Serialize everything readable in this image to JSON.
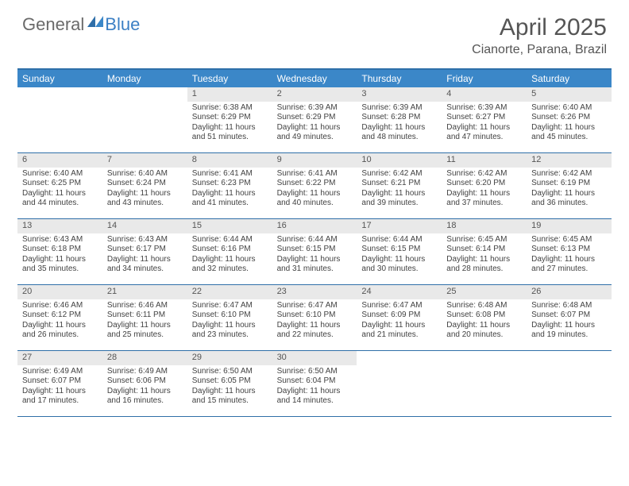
{
  "logo": {
    "general": "General",
    "blue": "Blue"
  },
  "header": {
    "month_title": "April 2025",
    "location": "Cianorte, Parana, Brazil"
  },
  "colors": {
    "header_bar": "#3b87c8",
    "border": "#2f6fa8",
    "daynum_bg": "#e9e9e9",
    "text": "#424242"
  },
  "dow": [
    "Sunday",
    "Monday",
    "Tuesday",
    "Wednesday",
    "Thursday",
    "Friday",
    "Saturday"
  ],
  "weeks": [
    [
      {
        "n": "",
        "sr": "",
        "ss": "",
        "dl": ""
      },
      {
        "n": "",
        "sr": "",
        "ss": "",
        "dl": ""
      },
      {
        "n": "1",
        "sr": "Sunrise: 6:38 AM",
        "ss": "Sunset: 6:29 PM",
        "dl": "Daylight: 11 hours and 51 minutes."
      },
      {
        "n": "2",
        "sr": "Sunrise: 6:39 AM",
        "ss": "Sunset: 6:29 PM",
        "dl": "Daylight: 11 hours and 49 minutes."
      },
      {
        "n": "3",
        "sr": "Sunrise: 6:39 AM",
        "ss": "Sunset: 6:28 PM",
        "dl": "Daylight: 11 hours and 48 minutes."
      },
      {
        "n": "4",
        "sr": "Sunrise: 6:39 AM",
        "ss": "Sunset: 6:27 PM",
        "dl": "Daylight: 11 hours and 47 minutes."
      },
      {
        "n": "5",
        "sr": "Sunrise: 6:40 AM",
        "ss": "Sunset: 6:26 PM",
        "dl": "Daylight: 11 hours and 45 minutes."
      }
    ],
    [
      {
        "n": "6",
        "sr": "Sunrise: 6:40 AM",
        "ss": "Sunset: 6:25 PM",
        "dl": "Daylight: 11 hours and 44 minutes."
      },
      {
        "n": "7",
        "sr": "Sunrise: 6:40 AM",
        "ss": "Sunset: 6:24 PM",
        "dl": "Daylight: 11 hours and 43 minutes."
      },
      {
        "n": "8",
        "sr": "Sunrise: 6:41 AM",
        "ss": "Sunset: 6:23 PM",
        "dl": "Daylight: 11 hours and 41 minutes."
      },
      {
        "n": "9",
        "sr": "Sunrise: 6:41 AM",
        "ss": "Sunset: 6:22 PM",
        "dl": "Daylight: 11 hours and 40 minutes."
      },
      {
        "n": "10",
        "sr": "Sunrise: 6:42 AM",
        "ss": "Sunset: 6:21 PM",
        "dl": "Daylight: 11 hours and 39 minutes."
      },
      {
        "n": "11",
        "sr": "Sunrise: 6:42 AM",
        "ss": "Sunset: 6:20 PM",
        "dl": "Daylight: 11 hours and 37 minutes."
      },
      {
        "n": "12",
        "sr": "Sunrise: 6:42 AM",
        "ss": "Sunset: 6:19 PM",
        "dl": "Daylight: 11 hours and 36 minutes."
      }
    ],
    [
      {
        "n": "13",
        "sr": "Sunrise: 6:43 AM",
        "ss": "Sunset: 6:18 PM",
        "dl": "Daylight: 11 hours and 35 minutes."
      },
      {
        "n": "14",
        "sr": "Sunrise: 6:43 AM",
        "ss": "Sunset: 6:17 PM",
        "dl": "Daylight: 11 hours and 34 minutes."
      },
      {
        "n": "15",
        "sr": "Sunrise: 6:44 AM",
        "ss": "Sunset: 6:16 PM",
        "dl": "Daylight: 11 hours and 32 minutes."
      },
      {
        "n": "16",
        "sr": "Sunrise: 6:44 AM",
        "ss": "Sunset: 6:15 PM",
        "dl": "Daylight: 11 hours and 31 minutes."
      },
      {
        "n": "17",
        "sr": "Sunrise: 6:44 AM",
        "ss": "Sunset: 6:15 PM",
        "dl": "Daylight: 11 hours and 30 minutes."
      },
      {
        "n": "18",
        "sr": "Sunrise: 6:45 AM",
        "ss": "Sunset: 6:14 PM",
        "dl": "Daylight: 11 hours and 28 minutes."
      },
      {
        "n": "19",
        "sr": "Sunrise: 6:45 AM",
        "ss": "Sunset: 6:13 PM",
        "dl": "Daylight: 11 hours and 27 minutes."
      }
    ],
    [
      {
        "n": "20",
        "sr": "Sunrise: 6:46 AM",
        "ss": "Sunset: 6:12 PM",
        "dl": "Daylight: 11 hours and 26 minutes."
      },
      {
        "n": "21",
        "sr": "Sunrise: 6:46 AM",
        "ss": "Sunset: 6:11 PM",
        "dl": "Daylight: 11 hours and 25 minutes."
      },
      {
        "n": "22",
        "sr": "Sunrise: 6:47 AM",
        "ss": "Sunset: 6:10 PM",
        "dl": "Daylight: 11 hours and 23 minutes."
      },
      {
        "n": "23",
        "sr": "Sunrise: 6:47 AM",
        "ss": "Sunset: 6:10 PM",
        "dl": "Daylight: 11 hours and 22 minutes."
      },
      {
        "n": "24",
        "sr": "Sunrise: 6:47 AM",
        "ss": "Sunset: 6:09 PM",
        "dl": "Daylight: 11 hours and 21 minutes."
      },
      {
        "n": "25",
        "sr": "Sunrise: 6:48 AM",
        "ss": "Sunset: 6:08 PM",
        "dl": "Daylight: 11 hours and 20 minutes."
      },
      {
        "n": "26",
        "sr": "Sunrise: 6:48 AM",
        "ss": "Sunset: 6:07 PM",
        "dl": "Daylight: 11 hours and 19 minutes."
      }
    ],
    [
      {
        "n": "27",
        "sr": "Sunrise: 6:49 AM",
        "ss": "Sunset: 6:07 PM",
        "dl": "Daylight: 11 hours and 17 minutes."
      },
      {
        "n": "28",
        "sr": "Sunrise: 6:49 AM",
        "ss": "Sunset: 6:06 PM",
        "dl": "Daylight: 11 hours and 16 minutes."
      },
      {
        "n": "29",
        "sr": "Sunrise: 6:50 AM",
        "ss": "Sunset: 6:05 PM",
        "dl": "Daylight: 11 hours and 15 minutes."
      },
      {
        "n": "30",
        "sr": "Sunrise: 6:50 AM",
        "ss": "Sunset: 6:04 PM",
        "dl": "Daylight: 11 hours and 14 minutes."
      },
      {
        "n": "",
        "sr": "",
        "ss": "",
        "dl": ""
      },
      {
        "n": "",
        "sr": "",
        "ss": "",
        "dl": ""
      },
      {
        "n": "",
        "sr": "",
        "ss": "",
        "dl": ""
      }
    ]
  ]
}
